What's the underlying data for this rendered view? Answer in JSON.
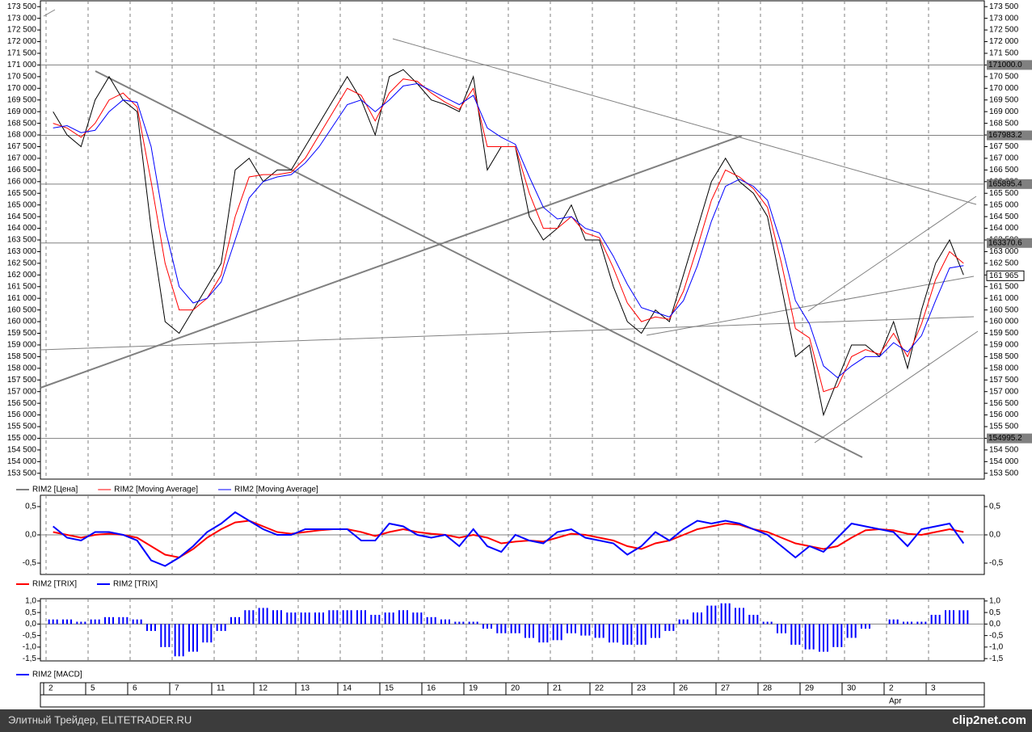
{
  "chart_data": [
    {
      "type": "line",
      "categories": [
        "2",
        null,
        null,
        "5",
        null,
        null,
        "6",
        null,
        null,
        "7",
        null,
        null,
        "11",
        null,
        null,
        "12",
        null,
        null,
        "13",
        null,
        null,
        "14",
        null,
        null,
        "15",
        null,
        null,
        "16",
        null,
        null,
        "19",
        null,
        null,
        "20",
        null,
        null,
        "21",
        null,
        null,
        "22",
        null,
        null,
        "23",
        null,
        null,
        "26",
        null,
        null,
        "27",
        null,
        null,
        "28",
        null,
        null,
        "29",
        null,
        null,
        "30",
        null,
        null,
        "2",
        null,
        null,
        "3",
        null,
        null
      ],
      "x_annotation": "Apr",
      "ylim": [
        153250,
        173750
      ],
      "yticks": [
        {
          "value": 173500,
          "label": "173 500"
        },
        {
          "value": 173000,
          "label": "173 000"
        },
        {
          "value": 172500,
          "label": "172 500"
        },
        {
          "value": 172000,
          "label": "172 000"
        },
        {
          "value": 171500,
          "label": "171 500"
        },
        {
          "value": 171000,
          "label": "171 000"
        },
        {
          "value": 170500,
          "label": "170 500"
        },
        {
          "value": 170000,
          "label": "170 000"
        },
        {
          "value": 169500,
          "label": "169 500"
        },
        {
          "value": 169000,
          "label": "169 000"
        },
        {
          "value": 168500,
          "label": "168 500"
        },
        {
          "value": 168000,
          "label": "168 000"
        },
        {
          "value": 167500,
          "label": "167 500"
        },
        {
          "value": 167000,
          "label": "167 000"
        },
        {
          "value": 166500,
          "label": "166 500"
        },
        {
          "value": 166000,
          "label": "166 000"
        },
        {
          "value": 165500,
          "label": "165 500"
        },
        {
          "value": 165000,
          "label": "165 000"
        },
        {
          "value": 164500,
          "label": "164 500"
        },
        {
          "value": 164000,
          "label": "164 000"
        },
        {
          "value": 163500,
          "label": "163 500"
        },
        {
          "value": 163000,
          "label": "163 000"
        },
        {
          "value": 162500,
          "label": "162 500"
        },
        {
          "value": 162000,
          "label": "162 000"
        },
        {
          "value": 161500,
          "label": "161 500"
        },
        {
          "value": 161000,
          "label": "161 000"
        },
        {
          "value": 160500,
          "label": "160 500"
        },
        {
          "value": 160000,
          "label": "160 000"
        },
        {
          "value": 159500,
          "label": "159 500"
        },
        {
          "value": 159000,
          "label": "159 000"
        },
        {
          "value": 158500,
          "label": "158 500"
        },
        {
          "value": 158000,
          "label": "158 000"
        },
        {
          "value": 157500,
          "label": "157 500"
        },
        {
          "value": 157000,
          "label": "157 000"
        },
        {
          "value": 156500,
          "label": "156 500"
        },
        {
          "value": 156000,
          "label": "156 000"
        },
        {
          "value": 155500,
          "label": "155 500"
        },
        {
          "value": 155000,
          "label": "155 000"
        },
        {
          "value": 154500,
          "label": "154 500"
        },
        {
          "value": 154000,
          "label": "154 000"
        },
        {
          "value": 153500,
          "label": "153 500"
        }
      ],
      "levels": [
        {
          "value": 171000,
          "label": "171000.0"
        },
        {
          "value": 167983,
          "label": "167983.2"
        },
        {
          "value": 165895,
          "label": "165895.4"
        },
        {
          "value": 163370,
          "label": "163370.6"
        },
        {
          "value": 154995,
          "label": "154995.2"
        }
      ],
      "last_price": {
        "value": 161965,
        "label": "161 965"
      },
      "series": [
        {
          "name": "RIM2 [Цена]",
          "color": "#000000",
          "values": [
            169000,
            168000,
            167500,
            169500,
            170500,
            169500,
            169000,
            164000,
            160000,
            159500,
            160500,
            161500,
            162500,
            166500,
            167000,
            166000,
            166500,
            166500,
            167500,
            168500,
            169500,
            170500,
            169500,
            168000,
            170500,
            170800,
            170200,
            169500,
            169300,
            169000,
            170500,
            166500,
            167500,
            167500,
            164500,
            163500,
            164000,
            165000,
            163500,
            163500,
            161500,
            160000,
            159500,
            160500,
            160000,
            162000,
            164000,
            166000,
            167000,
            166000,
            165500,
            164500,
            161500,
            158500,
            159000,
            156000,
            157500,
            159000,
            159000,
            158500,
            160000,
            158000,
            160500,
            162500,
            163500,
            162000
          ]
        },
        {
          "name": "RIM2 [Moving Average]",
          "color": "#ff0000",
          "values": [
            168500,
            168300,
            167900,
            168500,
            169500,
            169800,
            169200,
            166000,
            162500,
            160500,
            160500,
            161000,
            162000,
            164500,
            166200,
            166300,
            166300,
            166400,
            167000,
            168000,
            169000,
            170000,
            169700,
            168600,
            169800,
            170400,
            170300,
            169800,
            169400,
            169100,
            170000,
            167500,
            167500,
            167500,
            165500,
            164000,
            164000,
            164500,
            163800,
            163600,
            162300,
            160800,
            160000,
            160200,
            160100,
            161300,
            163200,
            165200,
            166500,
            166200,
            165700,
            164900,
            162500,
            159700,
            159300,
            157000,
            157200,
            158500,
            158800,
            158600,
            159500,
            158500,
            159900,
            161800,
            163000,
            162500
          ]
        },
        {
          "name": "RIM2 [Moving Average]",
          "color": "#0000ff",
          "values": [
            168300,
            168400,
            168100,
            168200,
            169000,
            169500,
            169400,
            167500,
            164000,
            161500,
            160800,
            161000,
            161700,
            163500,
            165300,
            166000,
            166200,
            166300,
            166800,
            167500,
            168400,
            169300,
            169500,
            169000,
            169500,
            170100,
            170200,
            169900,
            169600,
            169300,
            169700,
            168300,
            167900,
            167600,
            166200,
            164900,
            164400,
            164500,
            164000,
            163800,
            162800,
            161600,
            160600,
            160400,
            160200,
            160900,
            162400,
            164300,
            165800,
            166100,
            165800,
            165200,
            163300,
            160900,
            159900,
            158100,
            157600,
            158100,
            158500,
            158500,
            159100,
            158700,
            159400,
            160900,
            162300,
            162400
          ]
        }
      ]
    },
    {
      "type": "line",
      "ylim": [
        -0.7,
        0.7
      ],
      "yticks": [
        {
          "value": 0.5,
          "label": "0,5"
        },
        {
          "value": 0,
          "label": "0,0"
        },
        {
          "value": -0.5,
          "label": "-0,5"
        }
      ],
      "series": [
        {
          "name": "RIM2 [TRIX]",
          "color": "#ff0000",
          "values": [
            0.05,
            0,
            -0.05,
            0,
            0.02,
            0,
            -0.05,
            -0.2,
            -0.35,
            -0.4,
            -0.25,
            -0.05,
            0.1,
            0.22,
            0.25,
            0.15,
            0.05,
            0.02,
            0.05,
            0.08,
            0.1,
            0.1,
            0.05,
            -0.02,
            0.05,
            0.1,
            0.05,
            0.02,
            0,
            -0.05,
            0,
            -0.05,
            -0.15,
            -0.12,
            -0.1,
            -0.12,
            -0.05,
            0.02,
            0,
            -0.05,
            -0.1,
            -0.2,
            -0.25,
            -0.15,
            -0.1,
            0,
            0.1,
            0.15,
            0.2,
            0.18,
            0.1,
            0.05,
            -0.05,
            -0.15,
            -0.2,
            -0.25,
            -0.2,
            -0.05,
            0.08,
            0.1,
            0.08,
            0.02,
            0,
            0.05,
            0.1,
            0.05
          ]
        },
        {
          "name": "RIM2 [TRIX]",
          "color": "#0000ff",
          "values": [
            0.15,
            -0.05,
            -0.1,
            0.05,
            0.05,
            0,
            -0.1,
            -0.45,
            -0.55,
            -0.4,
            -0.2,
            0.05,
            0.2,
            0.4,
            0.25,
            0.1,
            0,
            0,
            0.1,
            0.1,
            0.1,
            0.1,
            -0.1,
            -0.1,
            0.2,
            0.15,
            0,
            -0.05,
            0,
            -0.2,
            0.1,
            -0.2,
            -0.3,
            0,
            -0.1,
            -0.15,
            0.05,
            0.1,
            -0.05,
            -0.1,
            -0.15,
            -0.35,
            -0.2,
            0.05,
            -0.1,
            0.1,
            0.25,
            0.2,
            0.25,
            0.2,
            0.1,
            0,
            -0.2,
            -0.4,
            -0.2,
            -0.3,
            -0.05,
            0.2,
            0.15,
            0.1,
            0.05,
            -0.2,
            0.1,
            0.15,
            0.2,
            -0.15
          ]
        }
      ]
    },
    {
      "type": "bar",
      "ylim": [
        -1.6,
        1.1
      ],
      "yticks": [
        {
          "value": 1,
          "label": "1,0"
        },
        {
          "value": 0.5,
          "label": "0,5"
        },
        {
          "value": 0,
          "label": "0,0"
        },
        {
          "value": -0.5,
          "label": "-0,5"
        },
        {
          "value": -1,
          "label": "-1,0"
        },
        {
          "value": -1.5,
          "label": "-1,5"
        }
      ],
      "series": [
        {
          "name": "RIM2 [MACD]",
          "color": "#0000ff",
          "values": [
            0.2,
            0.2,
            0.1,
            0.2,
            0.3,
            0.3,
            0.2,
            -0.3,
            -1.0,
            -1.4,
            -1.2,
            -0.8,
            -0.3,
            0.3,
            0.6,
            0.7,
            0.6,
            0.5,
            0.5,
            0.5,
            0.6,
            0.6,
            0.6,
            0.4,
            0.5,
            0.6,
            0.5,
            0.3,
            0.2,
            0.1,
            0.1,
            -0.2,
            -0.4,
            -0.4,
            -0.6,
            -0.8,
            -0.7,
            -0.4,
            -0.5,
            -0.6,
            -0.8,
            -0.9,
            -0.9,
            -0.6,
            -0.3,
            0.2,
            0.5,
            0.8,
            0.9,
            0.7,
            0.4,
            0.1,
            -0.4,
            -0.9,
            -1.1,
            -1.2,
            -1.0,
            -0.6,
            -0.2,
            0,
            0.2,
            0.1,
            0.1,
            0.4,
            0.6,
            0.6
          ]
        }
      ]
    }
  ],
  "footer": {
    "left": "Элитный Трейдер, ELITETRADER.RU",
    "right": "clip2net.com"
  }
}
